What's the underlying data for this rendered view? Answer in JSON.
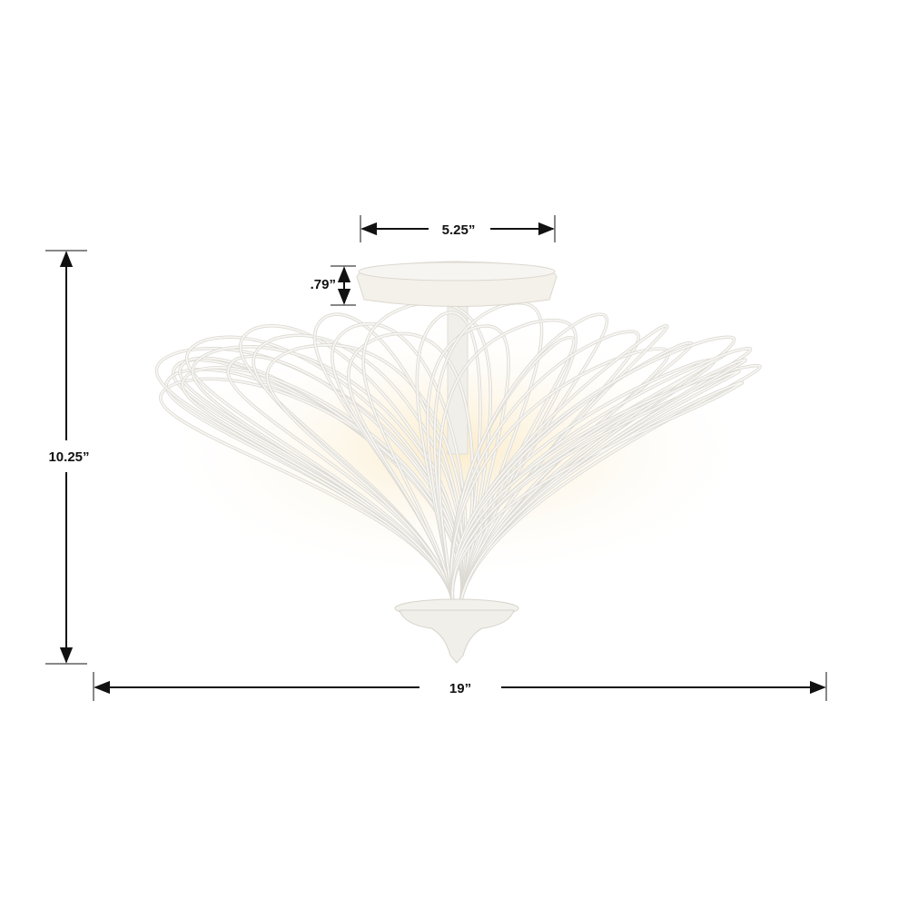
{
  "dimensions": {
    "canopy_width": "5.25”",
    "canopy_height": ".79”",
    "overall_height": "10.25”",
    "overall_width": "19”"
  },
  "colors": {
    "background": "#ffffff",
    "fixture": "#f2f0ec",
    "wire_stroke": "#dddad3",
    "glow": "#fbf0d6",
    "dimension_lines": "#111111"
  }
}
